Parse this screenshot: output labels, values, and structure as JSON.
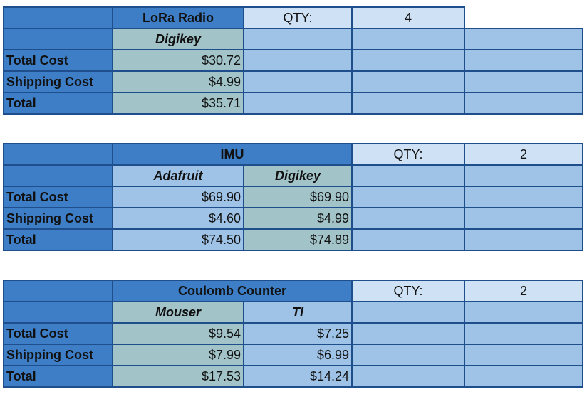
{
  "colors": {
    "header_blue": "#3d7ec6",
    "cell_blue": "#9fc3e7",
    "qty_blue": "#cfe1f4",
    "teal": "#a2c4c9",
    "border": "#1f4e8c"
  },
  "row_labels": {
    "total_cost": "Total Cost",
    "shipping_cost": "Shipping Cost",
    "total": "Total"
  },
  "qty_label": "QTY:",
  "blocks": [
    {
      "title": "LoRa Radio",
      "qty": "4",
      "vendors": [
        "Digikey",
        ""
      ],
      "total_cost": [
        "$30.72",
        ""
      ],
      "shipping_cost": [
        "$4.99",
        ""
      ],
      "total": [
        "$35.71",
        ""
      ]
    },
    {
      "title": "IMU",
      "qty": "2",
      "vendors": [
        "Adafruit",
        "Digikey"
      ],
      "total_cost": [
        "$69.90",
        "$69.90"
      ],
      "shipping_cost": [
        "$4.60",
        "$4.99"
      ],
      "total": [
        "$74.50",
        "$74.89"
      ]
    },
    {
      "title": "Coulomb Counter",
      "qty": "2",
      "vendors": [
        "Mouser",
        "TI"
      ],
      "total_cost": [
        "$9.54",
        "$7.25"
      ],
      "shipping_cost": [
        "$7.99",
        "$6.99"
      ],
      "total": [
        "$17.53",
        "$14.24"
      ]
    }
  ]
}
